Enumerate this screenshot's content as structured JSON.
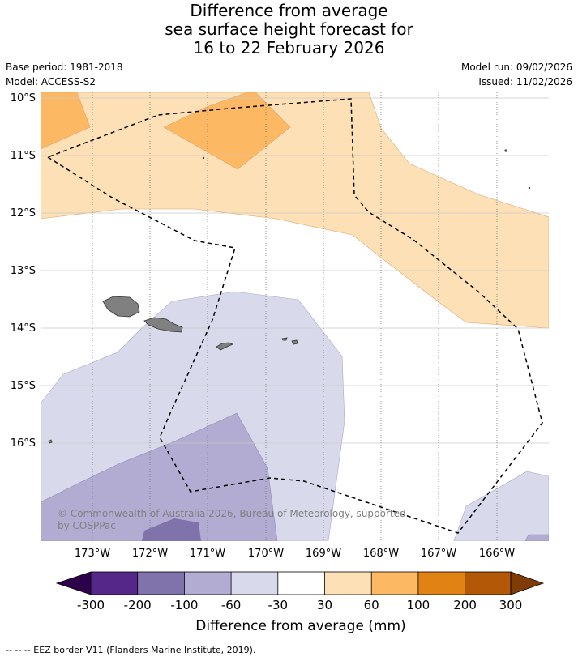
{
  "title": {
    "line1": "Difference from average",
    "line2": "sea surface height forecast for",
    "line3": "16 to 22 February 2026"
  },
  "meta": {
    "base_period": "Base period: 1981-2018",
    "model": "Model: ACCESS-S2",
    "model_run": "Model run: 09/02/2026",
    "issued": "Issued: 11/02/2026"
  },
  "map": {
    "lat_labels": [
      "10°S",
      "11°S",
      "12°S",
      "13°S",
      "14°S",
      "15°S",
      "16°S"
    ],
    "lon_labels": [
      "173°W",
      "172°W",
      "171°W",
      "170°W",
      "169°W",
      "168°W",
      "167°W",
      "166°W"
    ],
    "copyright_line1": "© Commonwealth of Australia 2026, Bureau of Meteorology, supported",
    "copyright_line2": "by COSPPac"
  },
  "colorbar": {
    "title": "Difference from average (mm)",
    "tick_labels": [
      "-300",
      "-200",
      "-100",
      "-60",
      "-30",
      "30",
      "60",
      "100",
      "200",
      "300"
    ],
    "colors": {
      "below_min": "#2d004b",
      "c1": "#542788",
      "c2": "#8073ac",
      "c3": "#b2abd2",
      "c4": "#d8daeb",
      "c5": "#ffffff",
      "c6": "#fee0b6",
      "c7": "#fdb863",
      "c8": "#e08214",
      "c9": "#b35806",
      "above_max": "#7f3b08"
    }
  },
  "footer": "--  --  -- EEZ border V11 (Flanders Marine Institute, 2019)."
}
